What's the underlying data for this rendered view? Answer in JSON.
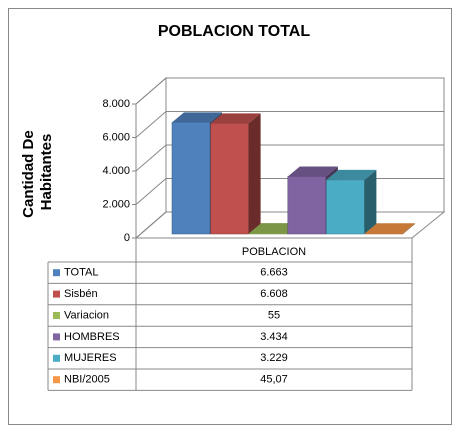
{
  "chart_data": {
    "type": "bar3d",
    "title": "POBLACION TOTAL",
    "ylabel": [
      "Cantidad De",
      "Habitantes"
    ],
    "categories": [
      "POBLACION"
    ],
    "series": [
      {
        "name": "TOTAL",
        "color": "#4f81bd",
        "values": [
          6663
        ],
        "value_labels": [
          "6.663"
        ]
      },
      {
        "name": "Sisbén",
        "color": "#c0504d",
        "values": [
          6608
        ],
        "value_labels": [
          "6.608"
        ]
      },
      {
        "name": "Variacion",
        "color": "#9bbb59",
        "values": [
          55
        ],
        "value_labels": [
          "55"
        ]
      },
      {
        "name": "HOMBRES",
        "color": "#8064a2",
        "values": [
          3434
        ],
        "value_labels": [
          "3.434"
        ]
      },
      {
        "name": "MUJERES",
        "color": "#4bacc6",
        "values": [
          3229
        ],
        "value_labels": [
          "3.229"
        ]
      },
      {
        "name": "NBI/2005",
        "color": "#f79646",
        "values": [
          45.07
        ],
        "value_labels": [
          "45,07"
        ]
      }
    ],
    "ylim": [
      0,
      8000
    ],
    "yticks": [
      0,
      {
        "value": 2000,
        "label": "2.000"
      },
      {
        "value": 4000,
        "label": "4.000"
      },
      {
        "value": 6000,
        "label": "6.000"
      },
      {
        "value": 8000,
        "label": "8.000"
      }
    ],
    "grid": true
  }
}
